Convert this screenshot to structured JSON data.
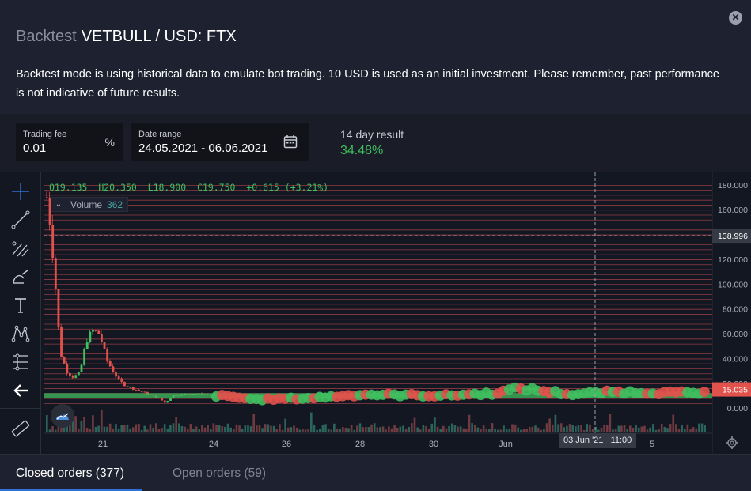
{
  "header": {
    "title_muted": "Backtest",
    "title_main": "VETBULL / USD: FTX",
    "close_icon": "close-icon",
    "description": "Backtest mode is using historical data to emulate bot trading. 10 USD is used as an initial investment. Please remember, past performance is not indicative of future results."
  },
  "params": {
    "trading_fee": {
      "label": "Trading fee",
      "value": "0.01",
      "suffix": "%"
    },
    "date_range": {
      "label": "Date range",
      "value": "24.05.2021 - 06.06.2021",
      "icon": "calendar-icon"
    },
    "result": {
      "label": "14 day result",
      "value": "34.48%",
      "color": "#3fbf5f"
    }
  },
  "chart": {
    "ohlc": {
      "o": "O19.135",
      "h": "H20.350",
      "l": "L18.900",
      "c": "C19.750",
      "chg": "+0.615 (+3.21%)"
    },
    "volume": {
      "label": "Volume",
      "value": "362"
    },
    "crosshair_price": "138.996",
    "last_price": "15.035",
    "crosshair_time": "03 Jun '21   11:00",
    "price_ticks": [
      "180.000",
      "160.000",
      "140.000",
      "120.000",
      "100.000",
      "80.000",
      "60.000",
      "40.000",
      "20.000",
      "0.000"
    ],
    "time_ticks": [
      "21",
      "24",
      "26",
      "28",
      "30",
      "Jun",
      "5"
    ],
    "colors": {
      "up": "#3fbf5f",
      "down": "#e0524b",
      "grid_line": "#b0434a",
      "background": "#131722"
    }
  },
  "chart_data": {
    "type": "candlestick",
    "ylim": [
      -5,
      185
    ],
    "price_ticks": [
      180,
      160,
      140,
      120,
      100,
      80,
      60,
      40,
      20,
      0
    ],
    "x_ticks": [
      "21",
      "24",
      "26",
      "28",
      "30",
      "Jun",
      "5"
    ],
    "crosshair": {
      "price": 138.996,
      "time": "03 Jun '21 11:00"
    },
    "last_price": 15.035,
    "close_profile": [
      [
        0,
        170
      ],
      [
        0.5,
        150
      ],
      [
        1,
        120
      ],
      [
        2,
        45
      ],
      [
        3,
        30
      ],
      [
        4,
        25
      ],
      [
        5,
        28
      ],
      [
        6,
        55
      ],
      [
        7,
        62
      ],
      [
        8,
        60
      ],
      [
        9,
        40
      ],
      [
        10,
        30
      ],
      [
        11,
        22
      ],
      [
        12,
        18
      ],
      [
        14,
        14
      ],
      [
        17,
        8
      ],
      [
        18,
        4
      ],
      [
        19,
        10
      ],
      [
        22,
        12
      ],
      [
        28,
        9
      ],
      [
        32,
        7
      ],
      [
        40,
        8
      ],
      [
        48,
        11
      ],
      [
        60,
        10
      ],
      [
        68,
        12
      ],
      [
        72,
        16
      ],
      [
        80,
        11
      ],
      [
        86,
        13
      ],
      [
        100,
        12
      ]
    ]
  },
  "tools": [
    "crosshair-icon",
    "trend-line-icon",
    "fib-icon",
    "brush-icon",
    "text-icon",
    "pattern-icon",
    "measure-icon",
    "back-arrow-icon",
    "ruler-icon"
  ],
  "tabs": {
    "closed": "Closed orders (377)",
    "open": "Open orders (59)"
  }
}
